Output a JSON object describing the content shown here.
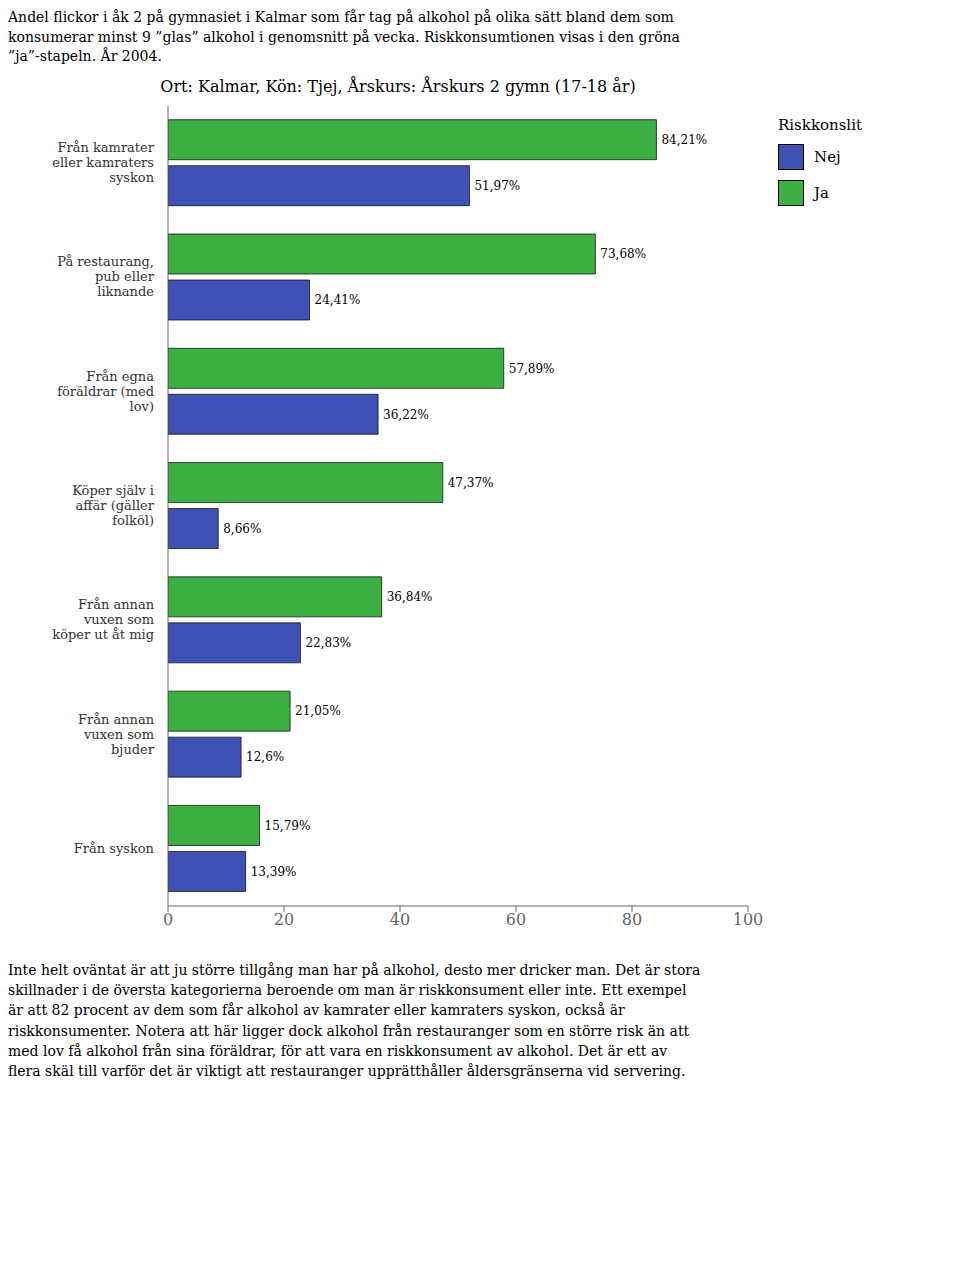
{
  "chart_data": {
    "type": "bar",
    "orientation": "horizontal",
    "title": "Ort: Kalmar, Kön: Tjej, Årskurs: Årskurs 2 gymn (17-18 år)",
    "subtitle": "Andel flickor i åk 2 på gymnasiet i Kalmar som får tag på alkohol på olika sätt bland dem som\nkonsumerar minst 9 ”glas” alkohol i genomsnitt på vecka. Riskkonsumtionen visas i den gröna\n”ja”-stapeln. År 2004.",
    "annotations": [
      "Inte helt oväntat är att ju större tillgång man har på alkohol, desto mer dricker man. Det är stora\nskillnader i de översta kategorierna beroende om man är riskkonsument eller inte. Ett exempel\när att 82 procent av dem som får alkohol av kamrater eller kamraters syskon, också är\nriskkonsumenter. Notera att här ligger dock alkohol från restauranger som en större risk än att\nmed lov få alkohol från sina föräldrar, för att vara en riskkonsument av alkohol. Det är ett av\nflera skäl till varför det är viktigt att restauranger upprätthåller åldersgränserna vid servering."
    ],
    "legend_title": "Riskkonslit",
    "categories": [
      "Från kamrater\neller kamraters\nsyskon",
      "På restaurang,\npub eller\nliknande",
      "Från egna\nföräldrar (med\nlov)",
      "Köper själv i\naffär (gäller\nfolköl)",
      "Från annan\nvuxen som\nköper ut åt mig",
      "Från annan\nvuxen som\nbjuder",
      "Från syskon"
    ],
    "series": [
      {
        "name": "Ja",
        "color": "#3cb043",
        "values": [
          84.21,
          73.68,
          57.89,
          47.37,
          36.84,
          21.05,
          15.79
        ],
        "value_labels": [
          "84,21%",
          "73,68%",
          "57,89%",
          "47,37%",
          "36,84%",
          "21,05%",
          "15,79%"
        ]
      },
      {
        "name": "Nej",
        "color": "#3f51b5",
        "values": [
          51.97,
          24.41,
          36.22,
          8.66,
          22.83,
          12.6,
          13.39
        ],
        "value_labels": [
          "51,97%",
          "24,41%",
          "36,22%",
          "8,66%",
          "22,83%",
          "12,6%",
          "13,39%"
        ]
      }
    ],
    "xlim": [
      0,
      100
    ],
    "xticks": [
      0,
      20,
      40,
      60,
      80,
      100
    ],
    "data_labels": true,
    "grid": false
  }
}
